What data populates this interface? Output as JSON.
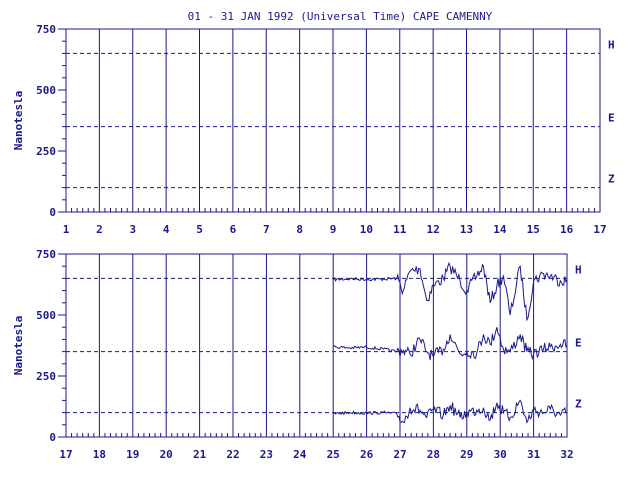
{
  "chart_data": {
    "type": "line",
    "title": "01 - 31 JAN 1992 (Universal Time) CAPE CAMENNY",
    "ylabel": "Nanotesla",
    "ylim": [
      0,
      750
    ],
    "yticks": [
      "0",
      "250",
      "500",
      "750"
    ],
    "grid": "vertical lines at each day; dashed reference lines at component baselines",
    "color": "#1a1a8c",
    "component_labels": [
      "H",
      "E",
      "Z"
    ],
    "reference_levels": {
      "H": 650,
      "E": 350,
      "Z": 100
    },
    "panels": [
      {
        "xlim": [
          1,
          17
        ],
        "xticks": [
          "1",
          "2",
          "3",
          "4",
          "5",
          "6",
          "7",
          "8",
          "9",
          "10",
          "11",
          "12",
          "13",
          "14",
          "15",
          "16",
          "17"
        ],
        "series": []
      },
      {
        "xlim": [
          17,
          32
        ],
        "xticks": [
          "17",
          "18",
          "19",
          "20",
          "21",
          "22",
          "23",
          "24",
          "25",
          "26",
          "27",
          "28",
          "29",
          "30",
          "31",
          "32"
        ],
        "series": [
          {
            "component": "H",
            "x": [
              25,
              25.5,
              26,
              26.5,
              26.9,
              27.1,
              27.3,
              27.6,
              27.8,
              28.0,
              28.3,
              28.5,
              28.8,
              29.0,
              29.3,
              29.5,
              29.7,
              29.9,
              30.1,
              30.3,
              30.6,
              30.8,
              31.0,
              31.3,
              31.5,
              31.8,
              32.0
            ],
            "y": [
              645,
              648,
              646,
              647,
              650,
              600,
              680,
              690,
              560,
              620,
              650,
              700,
              640,
              600,
              660,
              700,
              550,
              620,
              660,
              500,
              700,
              480,
              640,
              670,
              660,
              640,
              645
            ]
          },
          {
            "component": "E",
            "x": [
              25,
              25.5,
              26,
              26.5,
              26.9,
              27.1,
              27.3,
              27.6,
              27.8,
              28.0,
              28.3,
              28.5,
              28.8,
              29.0,
              29.3,
              29.5,
              29.7,
              29.9,
              30.1,
              30.3,
              30.6,
              30.8,
              31.0,
              31.3,
              31.5,
              31.8,
              32.0
            ],
            "y": [
              370,
              365,
              368,
              360,
              350,
              355,
              340,
              400,
              350,
              330,
              360,
              420,
              340,
              350,
              345,
              420,
              380,
              450,
              360,
              350,
              420,
              350,
              340,
              360,
              370,
              380,
              375
            ]
          },
          {
            "component": "Z",
            "x": [
              25,
              25.5,
              26,
              26.5,
              26.9,
              27.1,
              27.3,
              27.6,
              27.8,
              28.0,
              28.3,
              28.5,
              28.8,
              29.0,
              29.3,
              29.5,
              29.7,
              29.9,
              30.1,
              30.3,
              30.6,
              30.8,
              31.0,
              31.3,
              31.5,
              31.8,
              32.0
            ],
            "y": [
              95,
              100,
              98,
              100,
              95,
              60,
              120,
              110,
              80,
              110,
              90,
              130,
              80,
              100,
              110,
              120,
              70,
              140,
              100,
              80,
              150,
              60,
              110,
              100,
              115,
              90,
              100
            ]
          }
        ]
      }
    ]
  }
}
